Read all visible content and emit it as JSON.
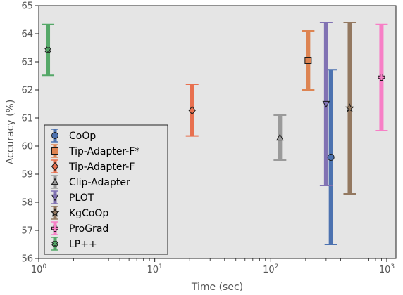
{
  "chart_data": {
    "type": "scatter",
    "title": "",
    "xlabel": "Time (sec)",
    "ylabel": "Accuracy (%)",
    "xscale": "log",
    "xlim": [
      1,
      1200
    ],
    "ylim": [
      56,
      65
    ],
    "grid": false,
    "legend_position": "lower-left",
    "background": "#e5e5e5",
    "x_ticks": [
      {
        "value": 1,
        "base": "10",
        "exp": "0"
      },
      {
        "value": 10,
        "base": "10",
        "exp": "1"
      },
      {
        "value": 100,
        "base": "10",
        "exp": "2"
      },
      {
        "value": 1000,
        "base": "10",
        "exp": "3"
      }
    ],
    "y_ticks": [
      "56",
      "57",
      "58",
      "59",
      "60",
      "61",
      "62",
      "63",
      "64",
      "65"
    ],
    "series": [
      {
        "name": "CoOp",
        "color": "#4c72b0",
        "marker": "circle",
        "x": 330,
        "y": 59.6,
        "ylow": 56.5,
        "yhigh": 62.72
      },
      {
        "name": "Tip-Adapter-F*",
        "color": "#dd8452",
        "marker": "square",
        "x": 210,
        "y": 63.05,
        "ylow": 62.0,
        "yhigh": 64.1
      },
      {
        "name": "Tip-Adapter-F",
        "color": "#e8704f",
        "marker": "diamond",
        "x": 21,
        "y": 61.27,
        "ylow": 60.36,
        "yhigh": 62.2
      },
      {
        "name": "Clip-Adapter",
        "color": "#9a9a9a",
        "marker": "triangle-up",
        "x": 120,
        "y": 60.3,
        "ylow": 59.5,
        "yhigh": 61.1
      },
      {
        "name": "PLOT",
        "color": "#8172b3",
        "marker": "triangle-down",
        "x": 300,
        "y": 61.5,
        "ylow": 58.6,
        "yhigh": 64.4
      },
      {
        "name": "KgCoOp",
        "color": "#937860",
        "marker": "star",
        "x": 480,
        "y": 61.35,
        "ylow": 58.3,
        "yhigh": 64.4
      },
      {
        "name": "ProGrad",
        "color": "#f77fc6",
        "marker": "plus",
        "x": 900,
        "y": 62.45,
        "ylow": 60.55,
        "yhigh": 64.33
      },
      {
        "name": "LP++",
        "color": "#55a868",
        "marker": "x",
        "x": 1.2,
        "y": 63.42,
        "ylow": 62.52,
        "yhigh": 64.33
      }
    ]
  }
}
